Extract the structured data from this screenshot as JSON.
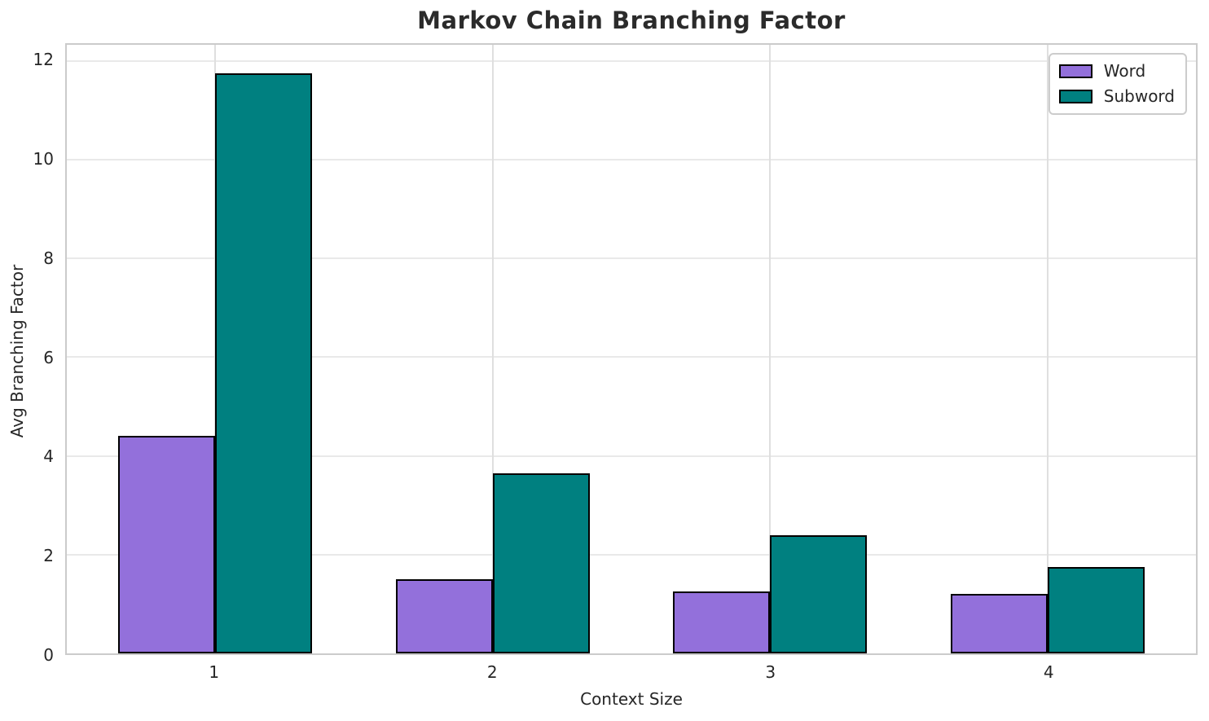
{
  "chart_data": {
    "type": "bar",
    "title": "Markov Chain Branching Factor",
    "xlabel": "Context Size",
    "ylabel": "Avg Branching Factor",
    "categories": [
      "1",
      "2",
      "3",
      "4"
    ],
    "series": [
      {
        "name": "Word",
        "color": "#9370DB",
        "edge_color": "#000000",
        "values": [
          4.4,
          1.5,
          1.25,
          1.2
        ]
      },
      {
        "name": "Subword",
        "color": "#008080",
        "edge_color": "#000000",
        "values": [
          11.75,
          3.65,
          2.4,
          1.75
        ]
      }
    ],
    "ylim": [
      0,
      12.33
    ],
    "yticks": [
      0,
      2,
      4,
      6,
      8,
      10,
      12
    ],
    "xlim": [
      0.465,
      4.535
    ],
    "bar_width_units": 0.35,
    "grid": "on",
    "legend_position": "upper right",
    "grid_color": "#e5e5e5",
    "spine_color": "#cbcbcb",
    "text_color": "#262626"
  }
}
